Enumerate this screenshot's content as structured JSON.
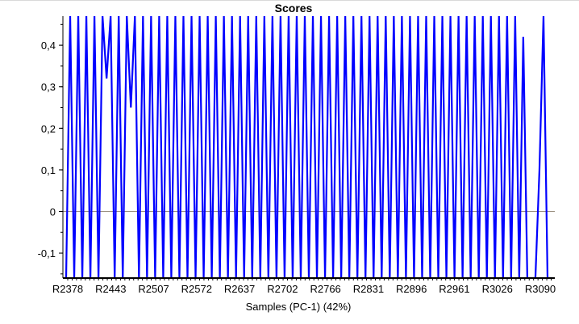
{
  "chart_data": {
    "type": "line",
    "title": "Scores",
    "xlabel": "Samples (PC-1) (42%)",
    "ylabel": "",
    "ylim": [
      -0.16,
      0.47
    ],
    "y_ticks": [
      0.4,
      0.3,
      0.2,
      0.1,
      0,
      -0.1
    ],
    "y_tick_labels": [
      "0,4",
      "0,3",
      "0,2",
      "0,1",
      "0",
      "-0,1"
    ],
    "x_tick_labels": [
      "R2378",
      "R2443",
      "R2507",
      "R2572",
      "R2637",
      "R2702",
      "R2766",
      "R2831",
      "R2896",
      "R2961",
      "R3026",
      "R3090"
    ],
    "zero_line": true,
    "series": [
      {
        "color": "#0000ff",
        "values": [
          -0.16,
          0.47,
          -0.16,
          0.47,
          -0.16,
          0.47,
          -0.16,
          0.47,
          -0.16,
          0.47,
          0.32,
          0.47,
          -0.16,
          0.47,
          -0.16,
          0.47,
          0.25,
          0.47,
          -0.16,
          0.47,
          -0.16,
          0.47,
          -0.16,
          0.47,
          -0.16,
          0.47,
          -0.16,
          0.47,
          -0.16,
          0.47,
          -0.16,
          0.47,
          -0.16,
          0.47,
          -0.16,
          0.47,
          -0.16,
          0.47,
          -0.16,
          0.47,
          -0.16,
          0.47,
          -0.16,
          0.47,
          -0.16,
          0.47,
          -0.16,
          0.47,
          -0.16,
          0.47,
          -0.16,
          0.47,
          -0.16,
          0.47,
          -0.16,
          0.47,
          -0.16,
          0.47,
          -0.16,
          0.47,
          -0.16,
          0.47,
          -0.16,
          0.47,
          -0.16,
          0.47,
          -0.16,
          0.47,
          -0.16,
          0.47,
          -0.16,
          0.47,
          -0.16,
          0.47,
          -0.16,
          0.47,
          -0.16,
          0.47,
          -0.16,
          0.47,
          -0.16,
          0.47,
          -0.16,
          0.47,
          -0.16,
          0.47,
          -0.16,
          0.47,
          -0.16,
          0.47,
          -0.16,
          0.47,
          -0.16,
          0.47,
          -0.16,
          0.47,
          -0.16,
          0.47,
          -0.16,
          0.47,
          -0.16,
          0.47,
          -0.16,
          0.47,
          -0.16,
          0.47,
          -0.16,
          0.47,
          -0.16,
          0.47,
          -0.16,
          0.47,
          -0.16,
          0.42,
          -0.16,
          -0.16,
          -0.16,
          0.1,
          0.47,
          -0.16,
          -0.16
        ]
      }
    ]
  }
}
